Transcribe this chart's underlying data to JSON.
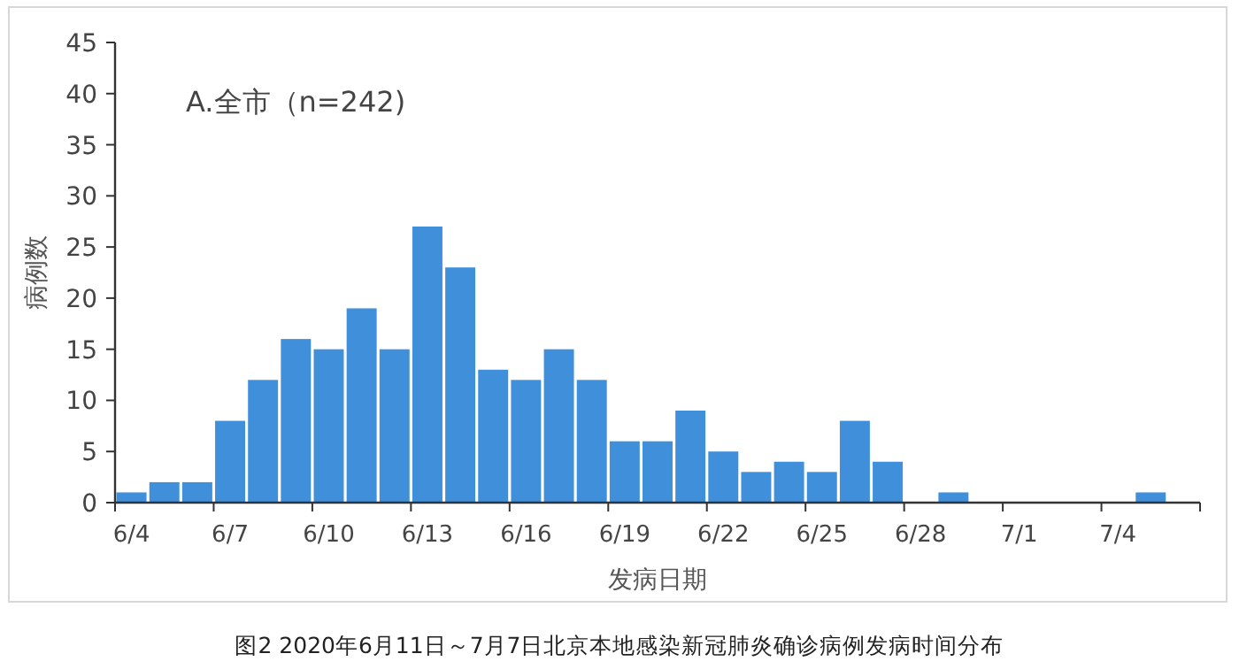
{
  "chart_data": {
    "type": "bar",
    "xlabel": "发病日期",
    "ylabel": "病例数",
    "annotations": [
      "A.全市（n=242)",
      "图2 2020年6月11日～7月7日北京本地感染新冠肺炎确诊病例发病时间分布"
    ],
    "categories": [
      "6/4",
      null,
      null,
      "6/7",
      null,
      null,
      "6/10",
      null,
      null,
      "6/13",
      null,
      null,
      "6/16",
      null,
      null,
      "6/19",
      null,
      null,
      "6/22",
      null,
      null,
      "6/25",
      null,
      null,
      "6/28",
      null,
      null,
      "7/1",
      null,
      null,
      "7/4",
      null,
      null
    ],
    "values": [
      1,
      2,
      2,
      8,
      12,
      16,
      15,
      19,
      15,
      27,
      23,
      13,
      12,
      15,
      12,
      6,
      6,
      9,
      5,
      3,
      4,
      3,
      8,
      4,
      0,
      1,
      0,
      0,
      0,
      0,
      0,
      1,
      0
    ],
    "color": "#3f8fdb",
    "ylim": [
      0,
      45
    ],
    "yticks": [
      0,
      5,
      10,
      15,
      20,
      25,
      30,
      35,
      40,
      45
    ],
    "grid": false
  }
}
